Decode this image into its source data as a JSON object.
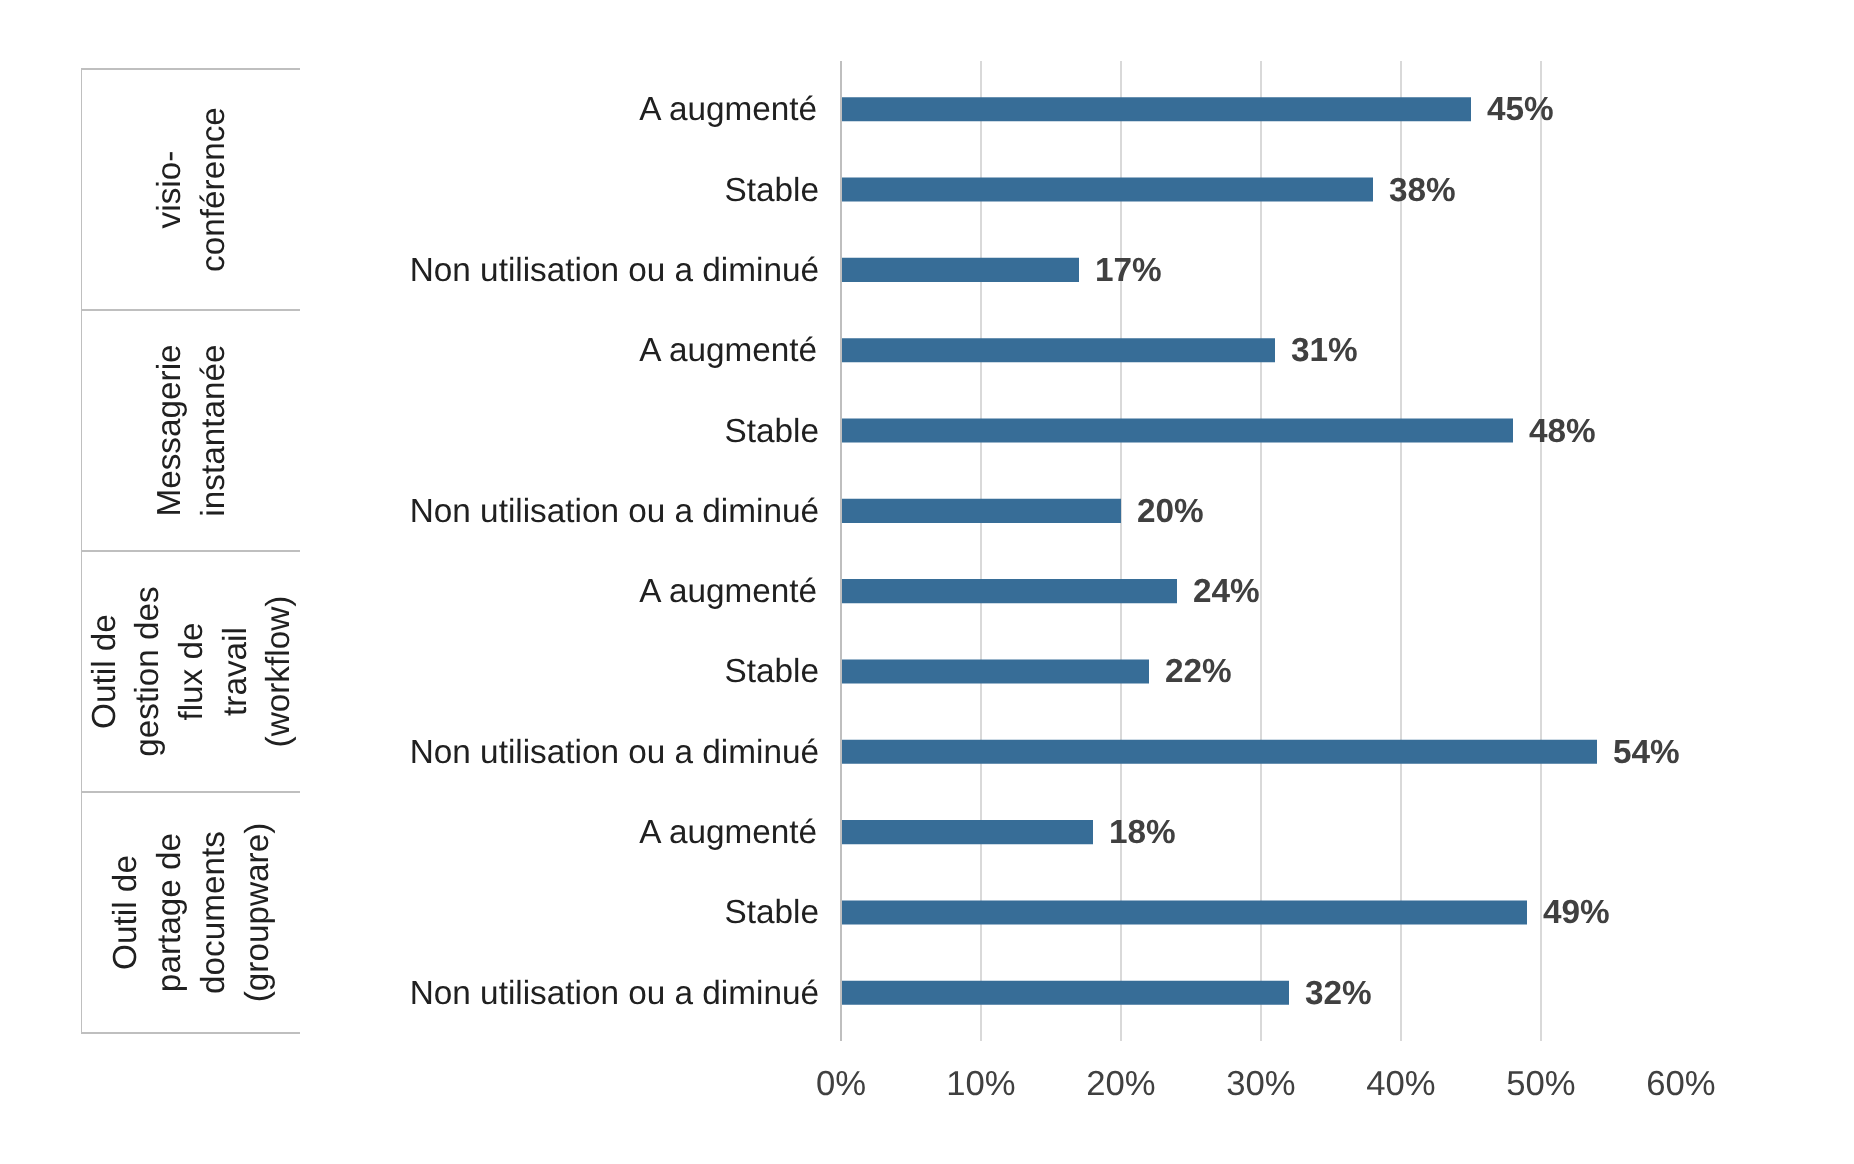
{
  "chart_data": {
    "type": "bar",
    "orientation": "horizontal",
    "categories": [
      "A augmenté",
      "Stable",
      "Non utilisation ou a diminué",
      "A augmenté",
      "Stable",
      "Non utilisation ou a diminué",
      "A augmenté",
      "Stable",
      "Non utilisation ou a diminué",
      "A augmenté",
      "Stable",
      "Non utilisation ou a diminué"
    ],
    "values": [
      45,
      38,
      17,
      31,
      48,
      20,
      24,
      22,
      54,
      18,
      49,
      32
    ],
    "value_labels": [
      "45%",
      "38%",
      "17%",
      "31%",
      "48%",
      "20%",
      "24%",
      "22%",
      "54%",
      "18%",
      "49%",
      "32%"
    ],
    "color": "#376d97",
    "xlim": [
      0,
      60
    ],
    "xticks": [
      {
        "value": 0,
        "label": "0%"
      },
      {
        "value": 10,
        "label": "10%"
      },
      {
        "value": 20,
        "label": "20%"
      },
      {
        "value": 30,
        "label": "30%"
      },
      {
        "value": 40,
        "label": "40%"
      },
      {
        "value": 50,
        "label": "50%"
      },
      {
        "value": 60,
        "label": "60%"
      }
    ],
    "grid": "x",
    "annotations": [
      "visio-conférence",
      "Messagerie instantanée",
      "Outil de gestion des flux de travail (workflow)",
      "Outil de partage de documents (groupware)"
    ]
  }
}
